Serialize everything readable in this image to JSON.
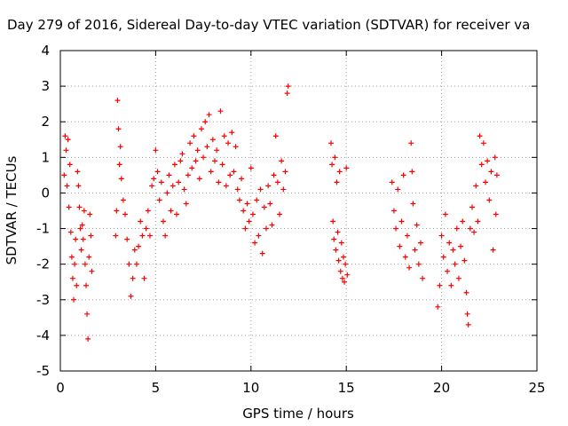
{
  "chart_data": {
    "type": "scatter",
    "title": "Day 279 of 2016, Sidereal Day-to-day VTEC variation (SDTVAR) for receiver va",
    "xlabel": "GPS time / hours",
    "ylabel": "SDTVAR / TECUs",
    "xlim": [
      0,
      25
    ],
    "ylim": [
      -5,
      4
    ],
    "xticks": [
      0,
      5,
      10,
      15,
      20,
      25
    ],
    "yticks": [
      -5,
      -4,
      -3,
      -2,
      -1,
      0,
      1,
      2,
      3,
      4
    ],
    "grid": true,
    "marker": "plus",
    "color": "#ff0000",
    "series": [
      {
        "name": "SDTVAR",
        "points": [
          [
            0.2,
            0.5
          ],
          [
            0.25,
            1.6
          ],
          [
            0.3,
            1.2
          ],
          [
            0.35,
            0.2
          ],
          [
            0.4,
            1.5
          ],
          [
            0.45,
            -0.4
          ],
          [
            0.5,
            0.8
          ],
          [
            0.55,
            -1.1
          ],
          [
            0.6,
            -1.8
          ],
          [
            0.65,
            -2.4
          ],
          [
            0.7,
            -3.0
          ],
          [
            0.75,
            -2.0
          ],
          [
            0.8,
            -1.3
          ],
          [
            0.85,
            -2.6
          ],
          [
            0.9,
            0.6
          ],
          [
            0.95,
            0.2
          ],
          [
            1.0,
            -0.4
          ],
          [
            1.05,
            -1.0
          ],
          [
            1.1,
            -1.6
          ],
          [
            1.15,
            -0.9
          ],
          [
            1.2,
            -1.3
          ],
          [
            1.25,
            -0.5
          ],
          [
            1.3,
            -2.0
          ],
          [
            1.35,
            -2.6
          ],
          [
            1.4,
            -3.4
          ],
          [
            1.45,
            -4.1
          ],
          [
            1.5,
            -1.8
          ],
          [
            1.55,
            -0.6
          ],
          [
            1.6,
            -1.2
          ],
          [
            1.65,
            -2.2
          ],
          [
            2.9,
            -1.2
          ],
          [
            2.95,
            -0.5
          ],
          [
            3.0,
            2.6
          ],
          [
            3.05,
            1.8
          ],
          [
            3.1,
            0.8
          ],
          [
            3.15,
            1.3
          ],
          [
            3.2,
            0.4
          ],
          [
            3.3,
            -0.2
          ],
          [
            3.4,
            -0.6
          ],
          [
            3.5,
            -1.3
          ],
          [
            3.6,
            -2.0
          ],
          [
            3.7,
            -2.9
          ],
          [
            3.8,
            -2.4
          ],
          [
            3.9,
            -1.6
          ],
          [
            4.0,
            -2.0
          ],
          [
            4.1,
            -1.5
          ],
          [
            4.2,
            -0.8
          ],
          [
            4.3,
            -1.2
          ],
          [
            4.4,
            -2.4
          ],
          [
            4.5,
            -1.0
          ],
          [
            4.6,
            -0.5
          ],
          [
            4.7,
            -1.2
          ],
          [
            4.8,
            0.2
          ],
          [
            4.9,
            0.4
          ],
          [
            5.0,
            1.2
          ],
          [
            5.1,
            0.6
          ],
          [
            5.2,
            -0.2
          ],
          [
            5.3,
            0.3
          ],
          [
            5.4,
            -0.8
          ],
          [
            5.5,
            -1.2
          ],
          [
            5.6,
            0.0
          ],
          [
            5.7,
            0.5
          ],
          [
            5.8,
            -0.5
          ],
          [
            5.9,
            0.2
          ],
          [
            6.0,
            0.8
          ],
          [
            6.1,
            -0.6
          ],
          [
            6.2,
            0.3
          ],
          [
            6.3,
            0.9
          ],
          [
            6.4,
            1.1
          ],
          [
            6.5,
            0.1
          ],
          [
            6.6,
            -0.3
          ],
          [
            6.7,
            0.5
          ],
          [
            6.8,
            1.4
          ],
          [
            6.9,
            0.7
          ],
          [
            7.0,
            1.6
          ],
          [
            7.1,
            0.9
          ],
          [
            7.2,
            1.2
          ],
          [
            7.3,
            0.4
          ],
          [
            7.4,
            1.8
          ],
          [
            7.5,
            1.0
          ],
          [
            7.6,
            2.0
          ],
          [
            7.7,
            1.3
          ],
          [
            7.8,
            2.2
          ],
          [
            7.9,
            0.6
          ],
          [
            8.0,
            1.5
          ],
          [
            8.1,
            0.9
          ],
          [
            8.2,
            1.2
          ],
          [
            8.3,
            0.3
          ],
          [
            8.4,
            2.3
          ],
          [
            8.5,
            0.8
          ],
          [
            8.6,
            1.6
          ],
          [
            8.7,
            0.2
          ],
          [
            8.8,
            1.4
          ],
          [
            8.9,
            0.5
          ],
          [
            9.0,
            1.7
          ],
          [
            9.1,
            0.6
          ],
          [
            9.2,
            1.3
          ],
          [
            9.3,
            0.1
          ],
          [
            9.4,
            -0.2
          ],
          [
            9.5,
            0.4
          ],
          [
            9.6,
            -0.5
          ],
          [
            9.7,
            -1.0
          ],
          [
            9.8,
            -0.3
          ],
          [
            9.9,
            -0.8
          ],
          [
            10.0,
            0.7
          ],
          [
            10.1,
            -0.6
          ],
          [
            10.2,
            -1.4
          ],
          [
            10.3,
            -0.2
          ],
          [
            10.4,
            -1.2
          ],
          [
            10.5,
            0.1
          ],
          [
            10.6,
            -1.7
          ],
          [
            10.7,
            -0.4
          ],
          [
            10.8,
            -1.0
          ],
          [
            10.9,
            0.2
          ],
          [
            11.0,
            -0.3
          ],
          [
            11.1,
            -0.9
          ],
          [
            11.2,
            0.5
          ],
          [
            11.3,
            1.6
          ],
          [
            11.4,
            0.3
          ],
          [
            11.5,
            -0.6
          ],
          [
            11.6,
            0.9
          ],
          [
            11.7,
            0.1
          ],
          [
            11.8,
            0.6
          ],
          [
            11.9,
            2.8
          ],
          [
            11.95,
            3.0
          ],
          [
            14.2,
            1.4
          ],
          [
            14.25,
            0.8
          ],
          [
            14.3,
            -0.8
          ],
          [
            14.35,
            -1.3
          ],
          [
            14.4,
            1.0
          ],
          [
            14.45,
            -1.6
          ],
          [
            14.5,
            0.3
          ],
          [
            14.55,
            -1.1
          ],
          [
            14.6,
            -1.9
          ],
          [
            14.65,
            0.6
          ],
          [
            14.7,
            -2.2
          ],
          [
            14.75,
            -1.4
          ],
          [
            14.8,
            -2.4
          ],
          [
            14.85,
            -1.8
          ],
          [
            14.9,
            -2.5
          ],
          [
            14.95,
            -2.0
          ],
          [
            15.0,
            0.7
          ],
          [
            15.05,
            -2.3
          ],
          [
            17.4,
            0.3
          ],
          [
            17.5,
            -0.5
          ],
          [
            17.6,
            -1.0
          ],
          [
            17.7,
            0.1
          ],
          [
            17.8,
            -1.5
          ],
          [
            17.9,
            -0.8
          ],
          [
            18.0,
            0.5
          ],
          [
            18.1,
            -1.8
          ],
          [
            18.2,
            -1.2
          ],
          [
            18.3,
            -2.1
          ],
          [
            18.4,
            1.4
          ],
          [
            18.45,
            0.6
          ],
          [
            18.5,
            -0.3
          ],
          [
            18.6,
            -1.6
          ],
          [
            18.7,
            -0.9
          ],
          [
            18.8,
            -2.0
          ],
          [
            18.9,
            -1.4
          ],
          [
            19.0,
            -2.4
          ],
          [
            19.8,
            -3.2
          ],
          [
            19.9,
            -2.6
          ],
          [
            20.0,
            -1.2
          ],
          [
            20.1,
            -1.8
          ],
          [
            20.2,
            -0.6
          ],
          [
            20.3,
            -2.2
          ],
          [
            20.4,
            -1.4
          ],
          [
            20.5,
            -2.6
          ],
          [
            20.6,
            -1.6
          ],
          [
            20.7,
            -2.0
          ],
          [
            20.8,
            -1.0
          ],
          [
            20.9,
            -2.4
          ],
          [
            21.0,
            -1.5
          ],
          [
            21.1,
            -0.8
          ],
          [
            21.2,
            -1.9
          ],
          [
            21.3,
            -2.8
          ],
          [
            21.35,
            -3.4
          ],
          [
            21.4,
            -3.7
          ],
          [
            21.5,
            -1.0
          ],
          [
            21.6,
            -0.4
          ],
          [
            21.7,
            -1.1
          ],
          [
            21.8,
            0.2
          ],
          [
            21.9,
            -0.8
          ],
          [
            22.0,
            1.6
          ],
          [
            22.1,
            0.8
          ],
          [
            22.2,
            1.4
          ],
          [
            22.3,
            0.3
          ],
          [
            22.4,
            0.9
          ],
          [
            22.5,
            -0.2
          ],
          [
            22.6,
            0.6
          ],
          [
            22.7,
            -1.6
          ],
          [
            22.8,
            1.0
          ],
          [
            22.85,
            -0.6
          ],
          [
            22.9,
            0.5
          ]
        ]
      }
    ]
  }
}
